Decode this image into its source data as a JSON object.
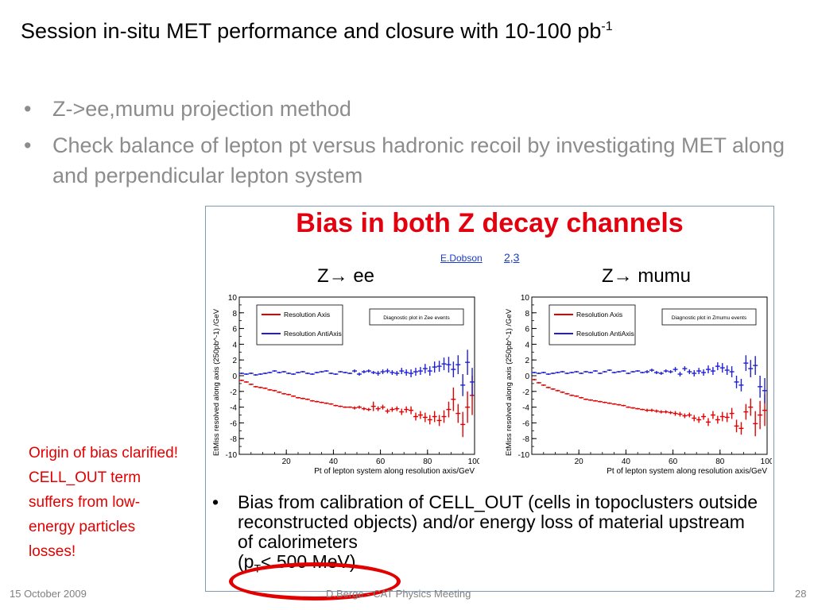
{
  "slide": {
    "title": "Session in-situ MET performance and closure with 10-100 pb",
    "title_sup": "-1",
    "bullets": [
      "Z->ee,mumu projection method",
      "Check balance of lepton pt versus hadronic recoil by investigating MET along and perpendicular lepton system"
    ],
    "side_note": "Origin of bias clarified! CELL_OUT term suffers from low-energy particles losses!",
    "footer": {
      "date": "15 October 2009",
      "center": "D.Berge - CAT Physics Meeting",
      "page": "28"
    }
  },
  "figure": {
    "title": "Bias in both Z decay channels",
    "author": "E.Dobson",
    "author_refs": "2,3",
    "channels": [
      "Z→ ee",
      "Z→ mumu"
    ],
    "bullet": "Bias from calibration of CELL_OUT (cells in topoclusters outside reconstructed objects) and/or energy loss of material upstream of calorimeters",
    "bullet_tail": "(p",
    "bullet_tail_sub": "T",
    "bullet_tail_end": "< 500 MeV)"
  },
  "colors": {
    "red": "#e30000",
    "blue": "#1f1fd6",
    "accent": "#e3000f",
    "frame": "#7f9ab8"
  },
  "chart_data": [
    {
      "type": "scatter",
      "title": "",
      "legend_box": "Diagnostic plot in Zee events",
      "xlabel": "Pt of lepton system along resolution axis/GeV",
      "ylabel": "EtMiss resolved along axis (250pb^-1) /GeV",
      "xlim": [
        0,
        100
      ],
      "ylim": [
        -10,
        10
      ],
      "xticks": [
        20,
        40,
        60,
        80,
        100
      ],
      "yticks": [
        -10,
        -8,
        -6,
        -4,
        -2,
        0,
        2,
        4,
        6,
        8,
        10
      ],
      "legend_position": "top-left",
      "series": [
        {
          "name": "Resolution Axis",
          "color": "#e30000",
          "x": [
            1,
            3,
            5,
            7,
            9,
            11,
            13,
            15,
            17,
            19,
            21,
            23,
            25,
            27,
            29,
            31,
            33,
            35,
            37,
            39,
            41,
            43,
            45,
            47,
            49,
            51,
            53,
            55,
            57,
            59,
            61,
            63,
            65,
            67,
            69,
            71,
            73,
            75,
            77,
            79,
            81,
            83,
            85,
            87,
            89,
            91,
            93,
            95,
            97,
            99
          ],
          "y": [
            -0.6,
            -0.8,
            -1.1,
            -1.4,
            -1.5,
            -1.6,
            -1.8,
            -1.9,
            -2.1,
            -2.3,
            -2.4,
            -2.6,
            -2.8,
            -2.9,
            -3.0,
            -3.2,
            -3.3,
            -3.4,
            -3.5,
            -3.6,
            -3.8,
            -3.9,
            -4.0,
            -4.0,
            -4.1,
            -4.0,
            -4.2,
            -4.3,
            -3.9,
            -4.2,
            -4.0,
            -4.5,
            -4.3,
            -4.2,
            -4.6,
            -4.3,
            -4.4,
            -5.2,
            -5.0,
            -5.3,
            -5.6,
            -5.2,
            -5.7,
            -5.2,
            -4.3,
            -3.0,
            -4.8,
            -6.2,
            -4.0,
            -2.5
          ],
          "err": [
            0.1,
            0.1,
            0.1,
            0.1,
            0.1,
            0.1,
            0.1,
            0.1,
            0.1,
            0.1,
            0.1,
            0.1,
            0.1,
            0.1,
            0.1,
            0.1,
            0.1,
            0.1,
            0.1,
            0.1,
            0.1,
            0.1,
            0.1,
            0.1,
            0.2,
            0.2,
            0.2,
            0.2,
            0.6,
            0.3,
            0.3,
            0.3,
            0.3,
            0.3,
            0.4,
            0.4,
            0.5,
            0.5,
            0.5,
            0.6,
            0.6,
            0.7,
            0.7,
            0.8,
            1.0,
            1.5,
            1.2,
            1.6,
            2.0,
            2.5
          ]
        },
        {
          "name": "Resolution AntiAxis",
          "color": "#1f1fd6",
          "x": [
            1,
            3,
            5,
            7,
            9,
            11,
            13,
            15,
            17,
            19,
            21,
            23,
            25,
            27,
            29,
            31,
            33,
            35,
            37,
            39,
            41,
            43,
            45,
            47,
            49,
            51,
            53,
            55,
            57,
            59,
            61,
            63,
            65,
            67,
            69,
            71,
            73,
            75,
            77,
            79,
            81,
            83,
            85,
            87,
            89,
            91,
            93,
            95,
            97,
            99
          ],
          "y": [
            0.3,
            0.2,
            0.3,
            0.1,
            0.2,
            0.3,
            0.4,
            0.6,
            0.4,
            0.5,
            0.3,
            0.2,
            0.4,
            0.5,
            0.3,
            0.2,
            0.4,
            0.5,
            0.6,
            0.3,
            0.2,
            0.5,
            0.4,
            0.3,
            0.6,
            0.2,
            0.5,
            0.6,
            0.4,
            0.3,
            0.5,
            0.6,
            0.4,
            0.3,
            0.6,
            0.4,
            0.3,
            0.5,
            0.6,
            0.9,
            0.6,
            1.1,
            1.2,
            1.5,
            1.4,
            0.8,
            1.4,
            -1.2,
            1.7,
            -0.8
          ],
          "err": [
            0.1,
            0.1,
            0.1,
            0.1,
            0.1,
            0.1,
            0.1,
            0.1,
            0.1,
            0.1,
            0.1,
            0.1,
            0.1,
            0.1,
            0.1,
            0.1,
            0.1,
            0.1,
            0.1,
            0.1,
            0.1,
            0.1,
            0.1,
            0.1,
            0.2,
            0.2,
            0.2,
            0.2,
            0.2,
            0.3,
            0.3,
            0.3,
            0.3,
            0.3,
            0.4,
            0.4,
            0.5,
            0.5,
            0.5,
            0.6,
            0.6,
            0.7,
            0.7,
            0.8,
            1.0,
            1.0,
            1.2,
            1.4,
            1.6,
            1.8
          ]
        }
      ]
    },
    {
      "type": "scatter",
      "title": "",
      "legend_box": "Diagnostic plot in Zmumu events",
      "xlabel": "Pt of lepton system along resolution axis/GeV",
      "ylabel": "EtMiss resolved along axis (250pb^-1) /GeV",
      "xlim": [
        0,
        100
      ],
      "ylim": [
        -10,
        10
      ],
      "xticks": [
        20,
        40,
        60,
        80,
        100
      ],
      "yticks": [
        -10,
        -8,
        -6,
        -4,
        -2,
        0,
        2,
        4,
        6,
        8,
        10
      ],
      "legend_position": "top-left",
      "series": [
        {
          "name": "Resolution Axis",
          "color": "#e30000",
          "x": [
            1,
            3,
            5,
            7,
            9,
            11,
            13,
            15,
            17,
            19,
            21,
            23,
            25,
            27,
            29,
            31,
            33,
            35,
            37,
            39,
            41,
            43,
            45,
            47,
            49,
            51,
            53,
            55,
            57,
            59,
            61,
            63,
            65,
            67,
            69,
            71,
            73,
            75,
            77,
            79,
            81,
            83,
            85,
            87,
            89,
            91,
            93,
            95,
            97,
            99
          ],
          "y": [
            -0.5,
            -0.9,
            -1.2,
            -1.5,
            -1.7,
            -1.9,
            -2.1,
            -2.3,
            -2.5,
            -2.6,
            -2.8,
            -3.0,
            -3.1,
            -3.2,
            -3.3,
            -3.4,
            -3.5,
            -3.6,
            -3.7,
            -3.8,
            -4.0,
            -4.1,
            -4.2,
            -4.3,
            -4.4,
            -4.4,
            -4.5,
            -4.6,
            -4.6,
            -4.7,
            -4.8,
            -4.9,
            -5.1,
            -5.0,
            -5.4,
            -5.6,
            -5.2,
            -5.9,
            -5.0,
            -5.6,
            -5.2,
            -5.3,
            -4.8,
            -6.4,
            -6.7,
            -4.6,
            -4.0,
            -6.1,
            -5.0,
            -4.4
          ],
          "err": [
            0.1,
            0.1,
            0.1,
            0.1,
            0.1,
            0.1,
            0.1,
            0.1,
            0.1,
            0.1,
            0.1,
            0.1,
            0.1,
            0.1,
            0.1,
            0.1,
            0.1,
            0.1,
            0.1,
            0.1,
            0.1,
            0.1,
            0.1,
            0.1,
            0.2,
            0.2,
            0.2,
            0.2,
            0.2,
            0.2,
            0.3,
            0.3,
            0.3,
            0.3,
            0.4,
            0.4,
            0.4,
            0.5,
            0.5,
            0.5,
            0.6,
            0.6,
            0.7,
            0.8,
            0.8,
            1.0,
            1.1,
            1.6,
            1.8,
            2.0
          ]
        },
        {
          "name": "Resolution AntiAxis",
          "color": "#1f1fd6",
          "x": [
            1,
            3,
            5,
            7,
            9,
            11,
            13,
            15,
            17,
            19,
            21,
            23,
            25,
            27,
            29,
            31,
            33,
            35,
            37,
            39,
            41,
            43,
            45,
            47,
            49,
            51,
            53,
            55,
            57,
            59,
            61,
            63,
            65,
            67,
            69,
            71,
            73,
            75,
            77,
            79,
            81,
            83,
            85,
            87,
            89,
            91,
            93,
            95,
            97,
            99
          ],
          "y": [
            0.4,
            0.3,
            0.4,
            0.2,
            0.3,
            0.4,
            0.5,
            0.3,
            0.4,
            0.5,
            0.3,
            0.5,
            0.4,
            0.6,
            0.3,
            0.5,
            0.7,
            0.4,
            0.5,
            0.6,
            0.3,
            0.5,
            0.6,
            0.4,
            0.5,
            0.7,
            0.4,
            0.3,
            0.6,
            0.5,
            0.8,
            0.2,
            0.9,
            0.5,
            0.3,
            0.6,
            0.4,
            0.8,
            0.6,
            1.2,
            1.0,
            0.7,
            0.5,
            -0.8,
            -1.2,
            1.6,
            0.9,
            1.3,
            -1.4,
            -1.9
          ],
          "err": [
            0.1,
            0.1,
            0.1,
            0.1,
            0.1,
            0.1,
            0.1,
            0.1,
            0.1,
            0.1,
            0.1,
            0.1,
            0.1,
            0.1,
            0.1,
            0.1,
            0.1,
            0.1,
            0.1,
            0.1,
            0.1,
            0.1,
            0.1,
            0.1,
            0.2,
            0.2,
            0.2,
            0.2,
            0.2,
            0.2,
            0.3,
            0.3,
            0.3,
            0.3,
            0.4,
            0.4,
            0.4,
            0.5,
            0.5,
            0.5,
            0.6,
            0.6,
            0.7,
            0.8,
            0.8,
            1.0,
            1.1,
            1.2,
            1.4,
            1.6
          ]
        }
      ]
    }
  ]
}
